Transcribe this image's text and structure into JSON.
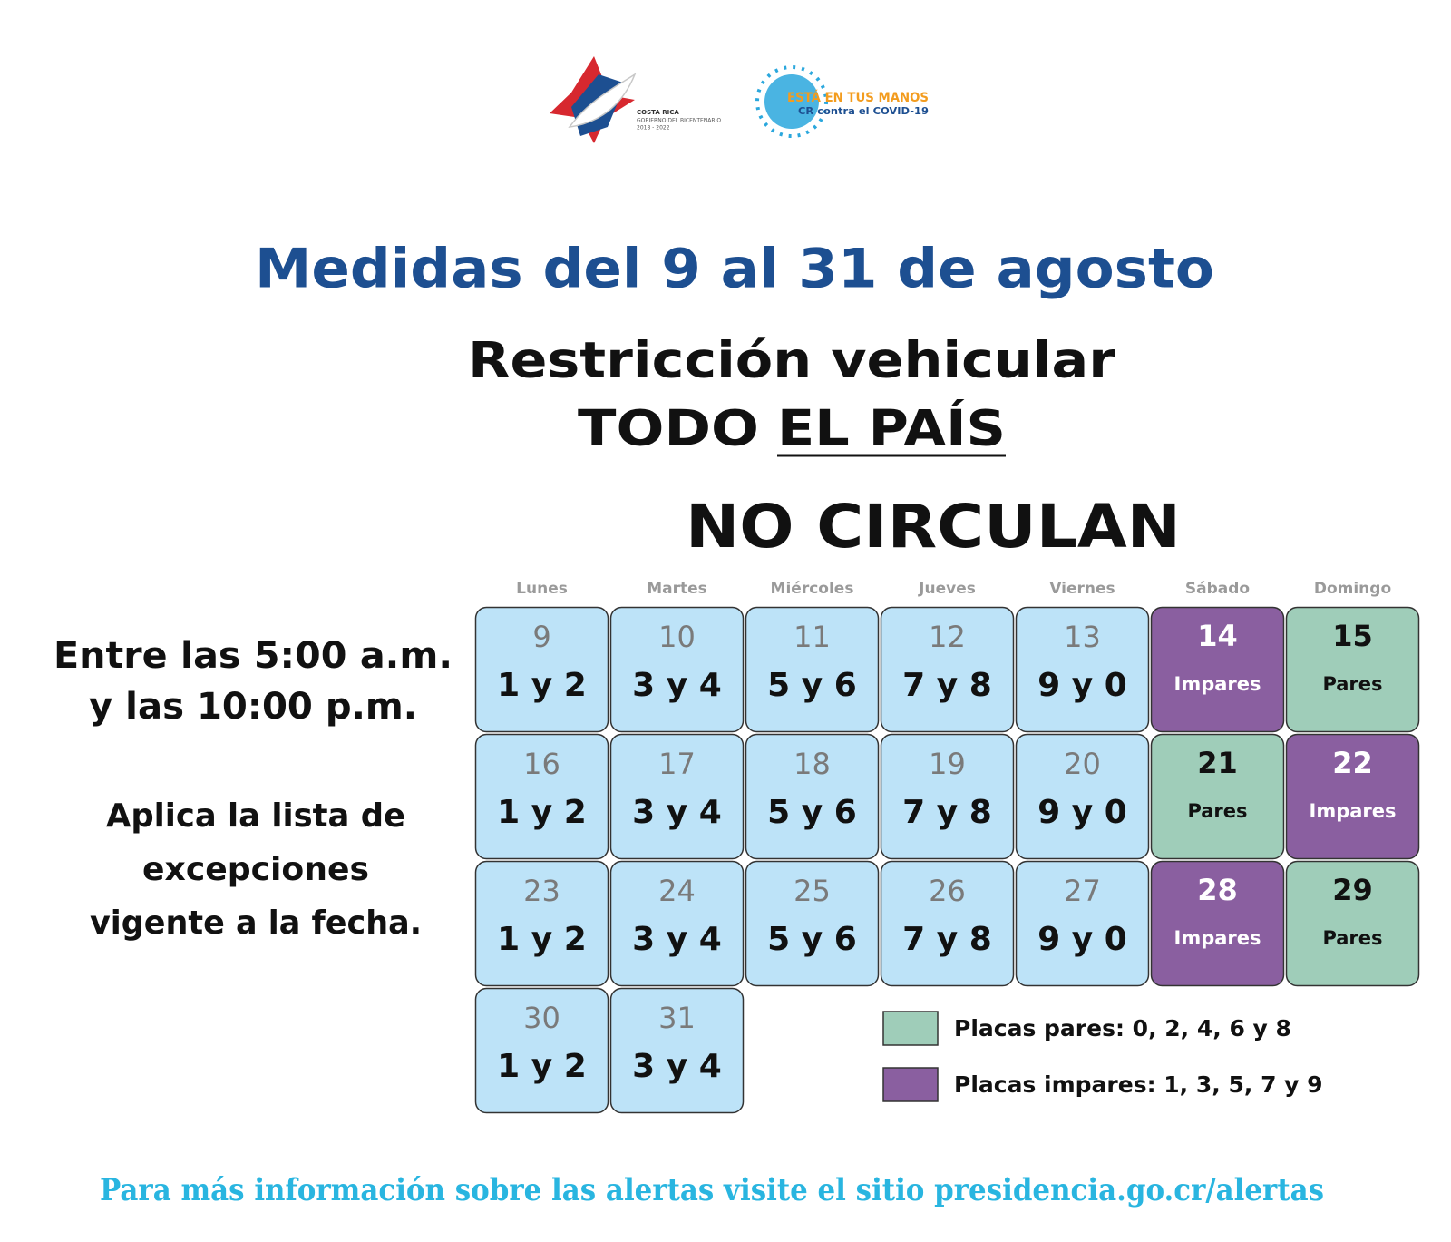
{
  "logos": {
    "government": {
      "lines": [
        "COSTA RICA",
        "GOBIERNO DEL BICENTENARIO",
        "2018 - 2022"
      ]
    },
    "campaign": {
      "lines": [
        "ESTÁ EN TUS MANOS",
        "CR contra el COVID-19"
      ]
    }
  },
  "header": {
    "title": "Medidas del 9 al 31 de agosto",
    "subtitle": "Restricción vehicular",
    "scope": [
      "TODO",
      "EL PAÍS"
    ],
    "heading": "NO CIRCULAN"
  },
  "schedule": {
    "hours": [
      "Entre las 5:00 a.m.",
      "y las 10:00 p.m."
    ],
    "note": [
      "Aplica la lista de",
      "excepciones",
      "vigente a la fecha."
    ]
  },
  "calendar": {
    "weekdays": [
      "Lunes",
      "Martes",
      "Miércoles",
      "Jueves",
      "Viernes",
      "Sábado",
      "Domingo"
    ],
    "rows": [
      [
        {
          "day": 9,
          "text": "1 y 2",
          "color": "#bde3f8"
        },
        {
          "day": 10,
          "text": "3 y 4",
          "color": "#bde3f8"
        },
        {
          "day": 11,
          "text": "5 y 6",
          "color": "#bde3f8"
        },
        {
          "day": 12,
          "text": "7 y 8",
          "color": "#bde3f8"
        },
        {
          "day": 13,
          "text": "9 y 0",
          "color": "#bde3f8"
        },
        {
          "day": 14,
          "text": "Impares",
          "color": "#8a5fa0"
        },
        {
          "day": 15,
          "text": "Pares",
          "color": "#9fcdb9"
        }
      ],
      [
        {
          "day": 16,
          "text": "1 y 2",
          "color": "#bde3f8"
        },
        {
          "day": 17,
          "text": "3 y 4",
          "color": "#bde3f8"
        },
        {
          "day": 18,
          "text": "5 y 6",
          "color": "#bde3f8"
        },
        {
          "day": 19,
          "text": "7 y 8",
          "color": "#bde3f8"
        },
        {
          "day": 20,
          "text": "9 y 0",
          "color": "#bde3f8"
        },
        {
          "day": 21,
          "text": "Pares",
          "color": "#9fcdb9"
        },
        {
          "day": 22,
          "text": "Impares",
          "color": "#8a5fa0"
        }
      ],
      [
        {
          "day": 23,
          "text": "1 y 2",
          "color": "#bde3f8"
        },
        {
          "day": 24,
          "text": "3 y 4",
          "color": "#bde3f8"
        },
        {
          "day": 25,
          "text": "5 y 6",
          "color": "#bde3f8"
        },
        {
          "day": 26,
          "text": "7 y 8",
          "color": "#bde3f8"
        },
        {
          "day": 27,
          "text": "9 y 0",
          "color": "#bde3f8"
        },
        {
          "day": 28,
          "text": "Impares",
          "color": "#8a5fa0"
        },
        {
          "day": 29,
          "text": "Pares",
          "color": "#9fcdb9"
        }
      ],
      [
        {
          "day": 30,
          "text": "1 y 2",
          "color": "#bde3f8"
        },
        {
          "day": 31,
          "text": "3 y 4",
          "color": "#bde3f8"
        }
      ]
    ]
  },
  "legend": [
    {
      "text": "Placas pares: 0, 2, 4, 6 y 8",
      "color": "#9fcdb9"
    },
    {
      "text": "Placas impares: 1, 3, 5, 7 y 9",
      "color": "#8a5fa0"
    }
  ],
  "footer": "Para más información sobre las alertas visite el sitio presidencia.go.cr/alertas"
}
